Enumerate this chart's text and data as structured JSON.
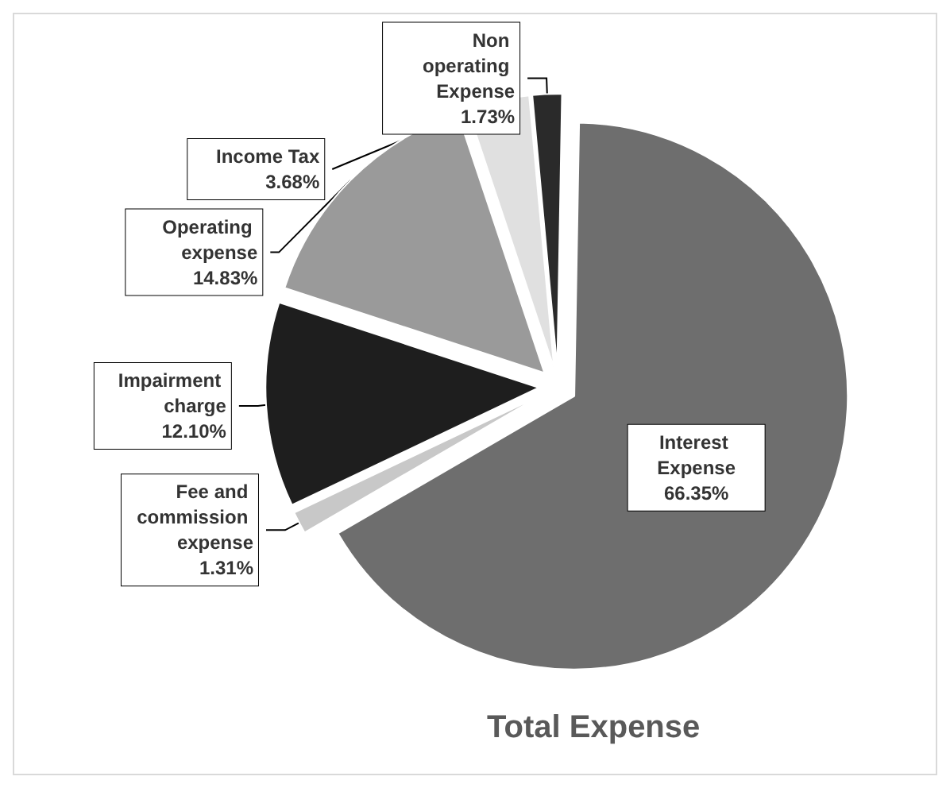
{
  "chart_data": {
    "type": "pie",
    "title": "Total Expense",
    "categories": [
      "Interest Expense",
      "Fee and commission expense",
      "Impairment charge",
      "Operating expense",
      "Income Tax",
      "Non operating Expense"
    ],
    "values": [
      66.35,
      1.31,
      12.1,
      14.83,
      3.68,
      1.73
    ],
    "colors": [
      "#6e6e6e",
      "#c8c8c8",
      "#1e1e1e",
      "#9a9a9a",
      "#e0e0e0",
      "#2a2a2a"
    ],
    "value_labels": [
      "66.35%",
      "1.31%",
      "12.10%",
      "14.83%",
      "3.68%",
      "1.73%"
    ],
    "legend": false
  }
}
